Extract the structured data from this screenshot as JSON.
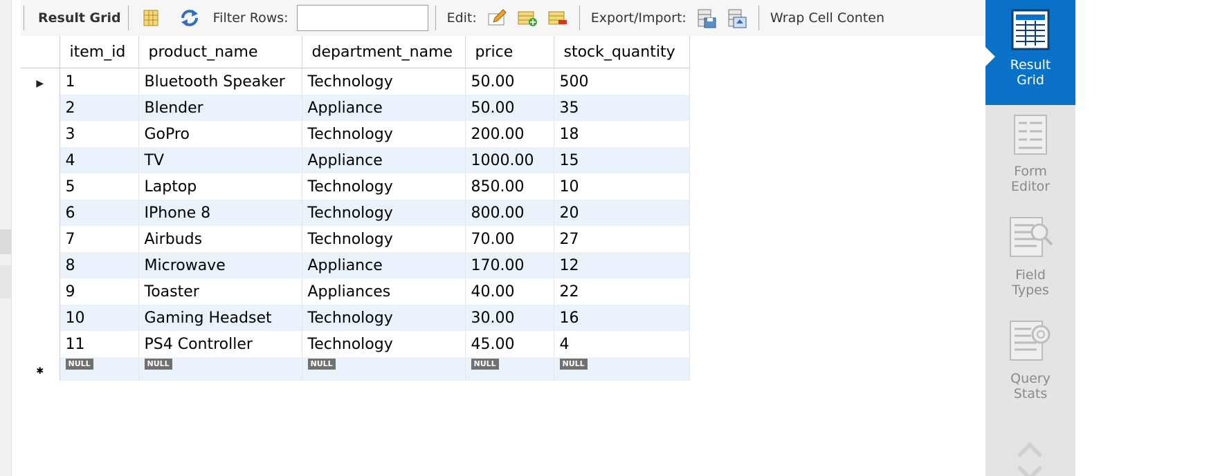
{
  "toolbar": {
    "result_grid_label": "Result Grid",
    "filter_label": "Filter Rows:",
    "filter_value": "",
    "edit_label": "Edit:",
    "export_label": "Export/Import:",
    "wrap_label": "Wrap Cell Conten"
  },
  "grid": {
    "columns": [
      "item_id",
      "product_name",
      "department_name",
      "price",
      "stock_quantity"
    ],
    "rows": [
      [
        "1",
        "Bluetooth Speaker",
        "Technology",
        "50.00",
        "500"
      ],
      [
        "2",
        "Blender",
        "Appliance",
        "50.00",
        "35"
      ],
      [
        "3",
        "GoPro",
        "Technology",
        "200.00",
        "18"
      ],
      [
        "4",
        "TV",
        "Appliance",
        "1000.00",
        "15"
      ],
      [
        "5",
        "Laptop",
        "Technology",
        "850.00",
        "10"
      ],
      [
        "6",
        "IPhone 8",
        "Technology",
        "800.00",
        "20"
      ],
      [
        "7",
        "Airbuds",
        "Technology",
        "70.00",
        "27"
      ],
      [
        "8",
        "Microwave",
        "Appliance",
        "170.00",
        "12"
      ],
      [
        "9",
        "Toaster",
        "Appliances",
        "40.00",
        "22"
      ],
      [
        "10",
        "Gaming Headset",
        "Technology",
        "30.00",
        "16"
      ],
      [
        "11",
        "PS4 Controller",
        "Technology",
        "45.00",
        "4"
      ]
    ],
    "null_label": "NULL",
    "current_row_marker": "▶",
    "new_row_marker": "✱"
  },
  "side_panel": {
    "items": [
      {
        "line1": "Result",
        "line2": "Grid",
        "icon": "result-grid-icon",
        "active": true
      },
      {
        "line1": "Form",
        "line2": "Editor",
        "icon": "form-editor-icon",
        "active": false
      },
      {
        "line1": "Field",
        "line2": "Types",
        "icon": "field-types-icon",
        "active": false
      },
      {
        "line1": "Query",
        "line2": "Stats",
        "icon": "query-stats-icon",
        "active": false
      }
    ]
  },
  "colors": {
    "accent": "#0a72c6",
    "row_alt": "#eaf2fb",
    "panel_bg": "#e4e4e4"
  }
}
